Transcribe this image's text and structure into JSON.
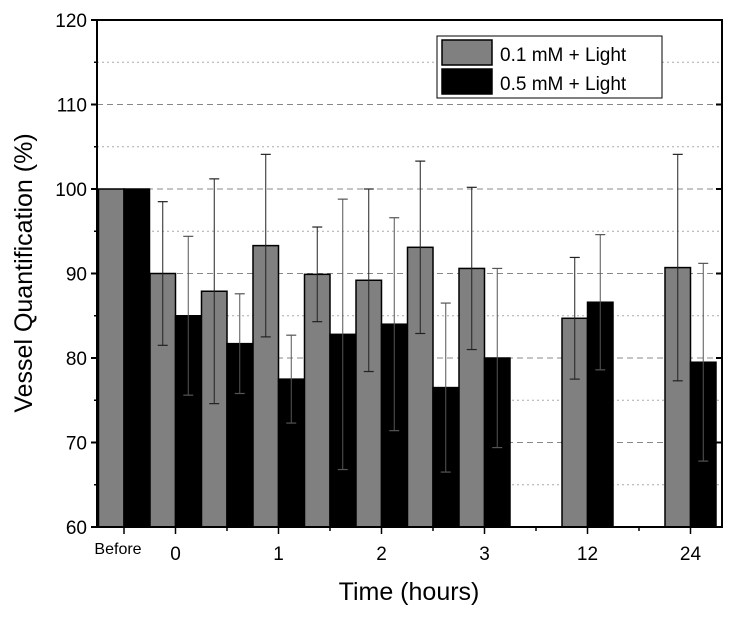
{
  "chart_data": {
    "type": "bar",
    "xlabel": "Time (hours)",
    "ylabel": "Vessel Quantification (%)",
    "ylim": [
      60,
      120
    ],
    "yticks": [
      60,
      70,
      80,
      90,
      100,
      110,
      120
    ],
    "grid": true,
    "legend_placement": "top-right",
    "categories": [
      "Before",
      "0",
      "",
      "1",
      "",
      "2",
      "",
      "3",
      "",
      "12",
      "",
      "24"
    ],
    "series": [
      {
        "name": "0.1 mM + Light",
        "color": "#808080",
        "values": [
          100,
          90.0,
          87.9,
          93.3,
          89.9,
          89.2,
          93.1,
          90.6,
          null,
          84.7,
          null,
          90.7
        ],
        "errors": [
          0,
          8.5,
          13.3,
          10.8,
          5.6,
          10.8,
          10.2,
          9.6,
          null,
          7.2,
          null,
          13.4
        ]
      },
      {
        "name": "0.5 mM + Light",
        "color": "#000000",
        "values": [
          100,
          85.0,
          81.7,
          77.5,
          82.8,
          84.0,
          76.5,
          80.0,
          null,
          86.6,
          null,
          79.5
        ],
        "errors": [
          0,
          9.4,
          5.9,
          5.2,
          16.0,
          12.6,
          10.0,
          10.6,
          null,
          8.0,
          null,
          11.7
        ]
      }
    ]
  }
}
